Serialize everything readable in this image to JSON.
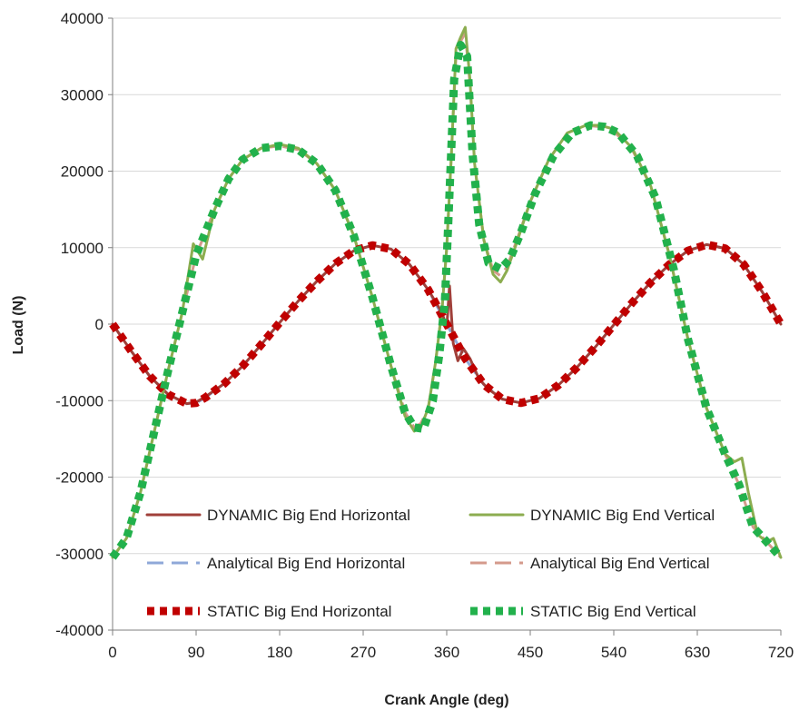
{
  "chart_data": {
    "type": "line",
    "title": "",
    "xlabel": "Crank Angle (deg)",
    "ylabel": "Load (N)",
    "xlim": [
      0,
      720
    ],
    "ylim": [
      -40000,
      40000
    ],
    "xticks": [
      0,
      90,
      180,
      270,
      360,
      450,
      540,
      630,
      720
    ],
    "yticks": [
      -40000,
      -30000,
      -20000,
      -10000,
      0,
      10000,
      20000,
      30000,
      40000
    ],
    "grid": "horizontal",
    "legend_placement": "bottom-center",
    "series": [
      {
        "name": "DYNAMIC Big End Horizontal",
        "color": "#a0403a",
        "style": "solid",
        "x": [
          0,
          20,
          40,
          60,
          80,
          90,
          100,
          120,
          140,
          160,
          180,
          200,
          220,
          240,
          260,
          280,
          300,
          320,
          340,
          355,
          360,
          363,
          367,
          372,
          378,
          385,
          395,
          405,
          420,
          440,
          460,
          480,
          500,
          520,
          540,
          560,
          580,
          600,
          620,
          640,
          660,
          680,
          700,
          720
        ],
        "y": [
          0,
          -3500,
          -6800,
          -9200,
          -10400,
          -10200,
          -9500,
          -7800,
          -5500,
          -2700,
          200,
          3000,
          5600,
          7900,
          9600,
          10300,
          9800,
          7800,
          4500,
          1500,
          -500,
          5000,
          -2500,
          -4800,
          -3200,
          -4500,
          -7200,
          -8500,
          -9800,
          -10300,
          -9700,
          -8000,
          -5700,
          -3000,
          -100,
          2800,
          5500,
          7800,
          9600,
          10400,
          9900,
          7800,
          4200,
          0
        ]
      },
      {
        "name": "DYNAMIC Big End Vertical",
        "color": "#8cad50",
        "style": "solid",
        "x": [
          0,
          15,
          30,
          45,
          60,
          75,
          87,
          92,
          97,
          103,
          110,
          125,
          140,
          160,
          180,
          200,
          220,
          240,
          260,
          280,
          300,
          315,
          325,
          332,
          340,
          348,
          355,
          360,
          365,
          370,
          375,
          380,
          385,
          390,
          400,
          410,
          418,
          425,
          435,
          450,
          470,
          490,
          510,
          525,
          540,
          560,
          580,
          600,
          620,
          640,
          660,
          670,
          678,
          685,
          695,
          705,
          712,
          720
        ],
        "y": [
          -30500,
          -28000,
          -22000,
          -14000,
          -6000,
          1500,
          10500,
          9500,
          8500,
          11500,
          15000,
          19000,
          21500,
          23000,
          23500,
          23000,
          21000,
          17500,
          11500,
          3500,
          -5500,
          -12000,
          -14000,
          -13500,
          -11000,
          -5000,
          2000,
          10000,
          22000,
          36000,
          37500,
          38800,
          32000,
          21000,
          11000,
          6500,
          5500,
          7000,
          10500,
          16000,
          21500,
          25000,
          26000,
          26000,
          25500,
          23000,
          18000,
          9000,
          -2000,
          -11000,
          -17000,
          -18000,
          -17500,
          -22000,
          -27500,
          -28500,
          -28000,
          -30500
        ]
      },
      {
        "name": "Analytical Big End Horizontal",
        "color": "#8fa8d8",
        "style": "dashed",
        "x": [
          0,
          20,
          40,
          60,
          80,
          90,
          100,
          120,
          140,
          160,
          180,
          200,
          220,
          240,
          260,
          280,
          300,
          320,
          340,
          360,
          380,
          400,
          420,
          440,
          460,
          480,
          500,
          520,
          540,
          560,
          580,
          600,
          620,
          640,
          660,
          680,
          700,
          720
        ],
        "y": [
          0,
          -3500,
          -6800,
          -9200,
          -10400,
          -10300,
          -9600,
          -7800,
          -5500,
          -2700,
          200,
          3000,
          5600,
          7900,
          9600,
          10300,
          9800,
          7800,
          4500,
          0,
          -4500,
          -7900,
          -9800,
          -10300,
          -9700,
          -8000,
          -5700,
          -3000,
          -100,
          2800,
          5500,
          7800,
          9600,
          10400,
          9900,
          7800,
          4200,
          0
        ]
      },
      {
        "name": "Analytical Big End Vertical",
        "color": "#d49a8c",
        "style": "dashed",
        "x": [
          0,
          15,
          30,
          45,
          60,
          75,
          90,
          100,
          110,
          125,
          140,
          160,
          180,
          200,
          220,
          240,
          260,
          280,
          300,
          315,
          325,
          332,
          340,
          348,
          355,
          360,
          365,
          370,
          375,
          380,
          385,
          390,
          400,
          410,
          418,
          425,
          435,
          450,
          470,
          490,
          510,
          525,
          540,
          560,
          580,
          600,
          620,
          640,
          660,
          675,
          690,
          705,
          720
        ],
        "y": [
          -30500,
          -28000,
          -22000,
          -14000,
          -6000,
          1500,
          9000,
          12000,
          15000,
          19000,
          21500,
          23000,
          23300,
          22800,
          21000,
          17500,
          11500,
          3500,
          -5500,
          -11500,
          -13500,
          -13000,
          -11000,
          -5000,
          2000,
          10000,
          22000,
          35000,
          37000,
          38000,
          31500,
          21000,
          11000,
          7000,
          6300,
          7500,
          10800,
          16000,
          21500,
          25000,
          26000,
          25800,
          25200,
          22800,
          18000,
          9000,
          -2000,
          -11000,
          -17000,
          -21000,
          -26500,
          -28500,
          -30500
        ]
      },
      {
        "name": "STATIC Big End Horizontal",
        "color": "#c00000",
        "style": "dotted",
        "x": [
          0,
          20,
          40,
          60,
          80,
          90,
          100,
          120,
          140,
          160,
          180,
          200,
          220,
          240,
          260,
          280,
          300,
          320,
          340,
          360,
          380,
          400,
          420,
          440,
          460,
          480,
          500,
          520,
          540,
          560,
          580,
          600,
          620,
          640,
          660,
          680,
          700,
          720
        ],
        "y": [
          0,
          -3500,
          -6800,
          -9200,
          -10400,
          -10300,
          -9600,
          -7800,
          -5500,
          -2700,
          200,
          3000,
          5600,
          7900,
          9600,
          10300,
          9800,
          7800,
          4500,
          0,
          -4500,
          -7900,
          -9800,
          -10300,
          -9700,
          -8000,
          -5700,
          -3000,
          -100,
          2800,
          5500,
          7800,
          9600,
          10400,
          9900,
          7800,
          4200,
          0
        ]
      },
      {
        "name": "STATIC Big End Vertical",
        "color": "#22b14c",
        "style": "dotted",
        "x": [
          0,
          15,
          30,
          45,
          60,
          75,
          90,
          100,
          110,
          125,
          140,
          160,
          180,
          200,
          220,
          240,
          260,
          280,
          300,
          315,
          325,
          335,
          345,
          352,
          358,
          362,
          368,
          375,
          382,
          388,
          395,
          405,
          418,
          428,
          440,
          455,
          475,
          495,
          515,
          530,
          545,
          565,
          585,
          605,
          620,
          640,
          660,
          675,
          690,
          705,
          720
        ],
        "y": [
          -30500,
          -28000,
          -22000,
          -14000,
          -6000,
          1500,
          9000,
          12000,
          15000,
          19000,
          21500,
          23000,
          23300,
          22800,
          21000,
          17500,
          11500,
          3500,
          -5500,
          -11500,
          -13500,
          -13700,
          -10000,
          -4000,
          3000,
          14000,
          32000,
          36500,
          35000,
          22000,
          13000,
          8000,
          7200,
          8500,
          12000,
          17000,
          22000,
          25000,
          26000,
          25800,
          25000,
          22000,
          16500,
          7000,
          -2000,
          -11000,
          -17000,
          -21000,
          -26500,
          -28500,
          -30500
        ]
      }
    ]
  }
}
